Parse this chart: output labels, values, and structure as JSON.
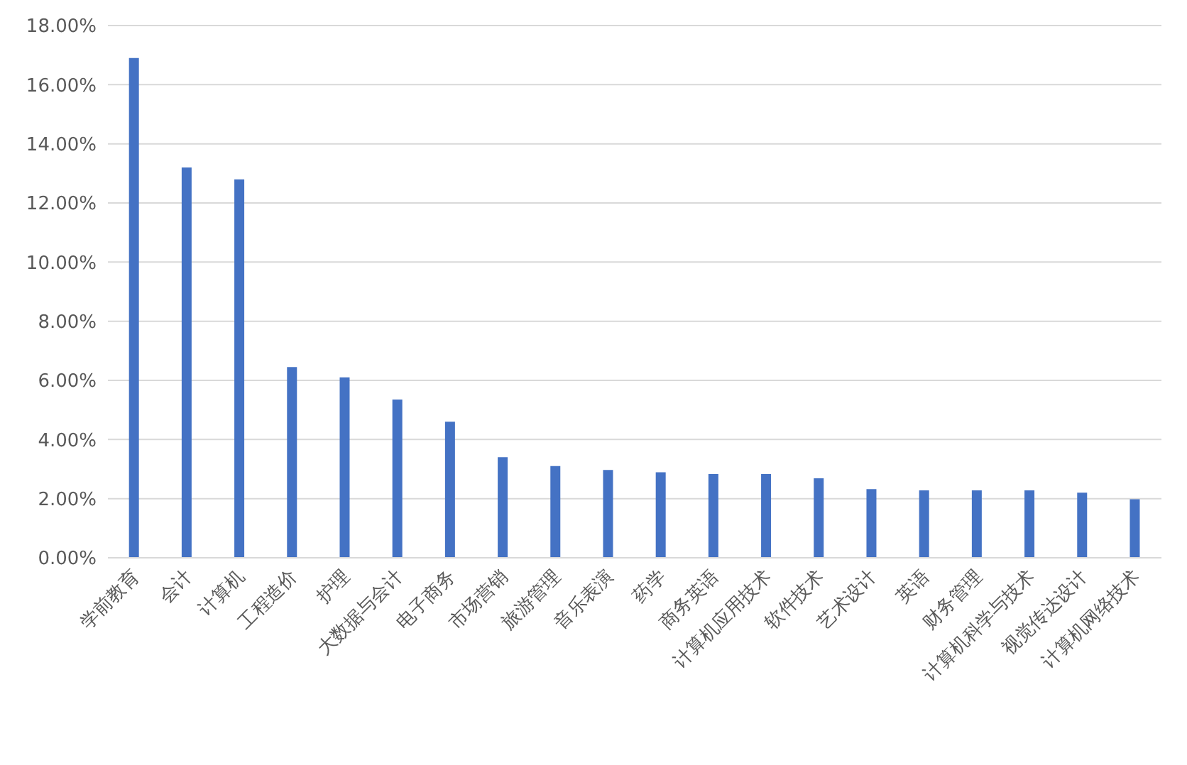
{
  "chart_data": {
    "type": "bar",
    "categories": [
      "学前教育",
      "会计",
      "计算机",
      "工程造价",
      "护理",
      "大数据与会计",
      "电子商务",
      "市场营销",
      "旅游管理",
      "音乐表演",
      "药学",
      "商务英语",
      "计算机应用技术",
      "软件技术",
      "艺术设计",
      "英语",
      "财务管理",
      "计算机科学与技术",
      "视觉传达设计",
      "计算机网络技术"
    ],
    "values": [
      16.9,
      13.2,
      12.8,
      6.45,
      6.1,
      5.35,
      4.6,
      3.4,
      3.1,
      2.97,
      2.89,
      2.83,
      2.83,
      2.69,
      2.32,
      2.28,
      2.28,
      2.28,
      2.2,
      1.98
    ],
    "color": "#4472c4",
    "ylim": [
      0,
      18
    ],
    "yticks": [
      {
        "value": 0,
        "label": "0.00%"
      },
      {
        "value": 2,
        "label": "2.00%"
      },
      {
        "value": 4,
        "label": "4.00%"
      },
      {
        "value": 6,
        "label": "6.00%"
      },
      {
        "value": 8,
        "label": "8.00%"
      },
      {
        "value": 10,
        "label": "10.00%"
      },
      {
        "value": 12,
        "label": "12.00%"
      },
      {
        "value": 14,
        "label": "14.00%"
      },
      {
        "value": 16,
        "label": "16.00%"
      },
      {
        "value": 18,
        "label": "18.00%"
      }
    ],
    "grid": "y"
  }
}
